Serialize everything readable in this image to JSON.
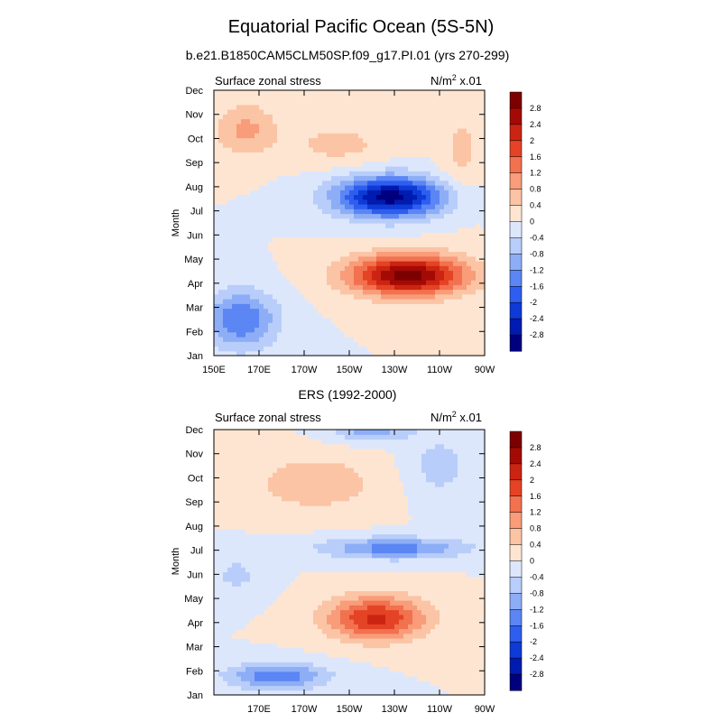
{
  "figure": {
    "title": "Equatorial Pacific Ocean (5S-5N)",
    "subtitle": "b.e21.B1850CAM5CLM50SP.f09_g17.PI.01 (yrs 270-299)"
  },
  "colors": {
    "levels": [
      "#00007f",
      "#001bb0",
      "#0e3ad6",
      "#2d5ef0",
      "#5b86f3",
      "#8daef6",
      "#b8cdf9",
      "#dde7fc",
      "#fde5d2",
      "#fbc4a5",
      "#f89c7a",
      "#f2714f",
      "#e44325",
      "#cc2412",
      "#a40a05",
      "#7d0000"
    ],
    "frame": "#000000"
  },
  "chart_data": [
    {
      "type": "heatmap",
      "subtype": "filled-contour",
      "panel_title": "",
      "left_label": "Surface zonal stress",
      "right_label": "N/m",
      "right_label_sup": "2",
      "right_label_tail": " x.01",
      "ylabel": "Month",
      "x_ticks": [
        "150E",
        "170E",
        "170W",
        "150W",
        "130W",
        "110W",
        "90W"
      ],
      "x_tick_values": [
        150,
        170,
        190,
        210,
        230,
        250,
        270
      ],
      "xlim": [
        150,
        270
      ],
      "y_ticks": [
        "Jan",
        "Feb",
        "Mar",
        "Apr",
        "May",
        "Jun",
        "Jul",
        "Aug",
        "Sep",
        "Oct",
        "Nov",
        "Dec"
      ],
      "y_tick_values": [
        1,
        2,
        3,
        4,
        5,
        6,
        7,
        8,
        9,
        10,
        11,
        12
      ],
      "ylim": [
        1,
        12
      ],
      "colorbar_labels": [
        "2.8",
        "2.4",
        "2",
        "1.6",
        "1.2",
        "0.8",
        "0.4",
        "0",
        "-0.4",
        "-0.8",
        "-1.2",
        "-1.6",
        "-2",
        "-2.4",
        "-2.8"
      ],
      "colorbar_levels": [
        -2.8,
        -2.4,
        -2,
        -1.6,
        -1.2,
        -0.8,
        -0.4,
        0,
        0.4,
        0.8,
        1.2,
        1.6,
        2,
        2.4,
        2.8
      ],
      "features": [
        {
          "lon": 228,
          "month": 7.6,
          "amp": -3.0,
          "slon": 24,
          "smonth": 0.85
        },
        {
          "lon": 236,
          "month": 4.35,
          "amp": 3.0,
          "slon": 26,
          "smonth": 0.85
        },
        {
          "lon": 162,
          "month": 2.5,
          "amp": -1.6,
          "slon": 16,
          "smonth": 1.2
        },
        {
          "lon": 164,
          "month": 10.4,
          "amp": 0.9,
          "slon": 14,
          "smonth": 1.1
        },
        {
          "lon": 205,
          "month": 9.8,
          "amp": 0.55,
          "slon": 22,
          "smonth": 0.9
        },
        {
          "lon": 260,
          "month": 9.5,
          "amp": 0.5,
          "slon": 10,
          "smonth": 2.0
        }
      ]
    },
    {
      "type": "heatmap",
      "subtype": "filled-contour",
      "panel_title": "ERS (1992-2000)",
      "left_label": "Surface zonal stress",
      "right_label": "N/m",
      "right_label_sup": "2",
      "right_label_tail": " x.01",
      "ylabel": "Month",
      "x_ticks": [
        "170E",
        "170W",
        "150W",
        "130W",
        "110W",
        "90W"
      ],
      "x_tick_values": [
        170,
        190,
        210,
        230,
        250,
        270
      ],
      "xlim": [
        150,
        270
      ],
      "y_ticks": [
        "Jan",
        "Feb",
        "Mar",
        "Apr",
        "May",
        "Jun",
        "Jul",
        "Aug",
        "Sep",
        "Oct",
        "Nov",
        "Dec"
      ],
      "y_tick_values": [
        1,
        2,
        3,
        4,
        5,
        6,
        7,
        8,
        9,
        10,
        11,
        12
      ],
      "ylim": [
        1,
        12
      ],
      "colorbar_labels": [
        "2.8",
        "2.4",
        "2",
        "1.6",
        "1.2",
        "0.8",
        "0.4",
        "0",
        "-0.4",
        "-0.8",
        "-1.2",
        "-1.6",
        "-2",
        "-2.4",
        "-2.8"
      ],
      "colorbar_levels": [
        -2.8,
        -2.4,
        -2,
        -1.6,
        -1.2,
        -0.8,
        -0.4,
        0,
        0.4,
        0.8,
        1.2,
        1.6,
        2,
        2.4,
        2.8
      ],
      "features": [
        {
          "lon": 222,
          "month": 4.2,
          "amp": 2.1,
          "slon": 22,
          "smonth": 0.9
        },
        {
          "lon": 230,
          "month": 7.1,
          "amp": -1.4,
          "slon": 32,
          "smonth": 0.45
        },
        {
          "lon": 178,
          "month": 1.8,
          "amp": -1.5,
          "slon": 22,
          "smonth": 0.55
        },
        {
          "lon": 220,
          "month": 12.0,
          "amp": -1.0,
          "slon": 18,
          "smonth": 0.5
        },
        {
          "lon": 195,
          "month": 9.8,
          "amp": 0.7,
          "slon": 28,
          "smonth": 1.2
        },
        {
          "lon": 250,
          "month": 10.5,
          "amp": -0.6,
          "slon": 14,
          "smonth": 1.3
        },
        {
          "lon": 160,
          "month": 6.0,
          "amp": -0.5,
          "slon": 12,
          "smonth": 0.9
        }
      ]
    }
  ]
}
